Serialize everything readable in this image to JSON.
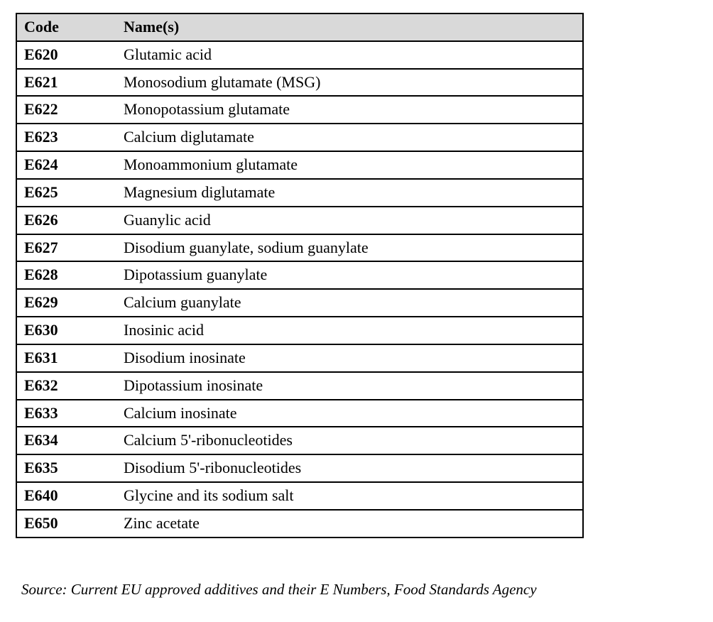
{
  "table": {
    "headers": [
      "Code",
      "Name(s)"
    ],
    "rows": [
      {
        "code": "E620",
        "name": "Glutamic acid"
      },
      {
        "code": "E621",
        "name": "Monosodium glutamate (MSG)"
      },
      {
        "code": "E622",
        "name": "Monopotassium glutamate"
      },
      {
        "code": "E623",
        "name": "Calcium diglutamate"
      },
      {
        "code": "E624",
        "name": "Monoammonium glutamate"
      },
      {
        "code": "E625",
        "name": "Magnesium diglutamate"
      },
      {
        "code": "E626",
        "name": "Guanylic acid"
      },
      {
        "code": "E627",
        "name": "Disodium guanylate, sodium guanylate"
      },
      {
        "code": "E628",
        "name": "Dipotassium guanylate"
      },
      {
        "code": "E629",
        "name": "Calcium guanylate"
      },
      {
        "code": "E630",
        "name": "Inosinic acid"
      },
      {
        "code": "E631",
        "name": "Disodium inosinate"
      },
      {
        "code": "E632",
        "name": "Dipotassium inosinate"
      },
      {
        "code": "E633",
        "name": "Calcium inosinate"
      },
      {
        "code": "E634",
        "name": "Calcium 5'-ribonucleotides"
      },
      {
        "code": "E635",
        "name": "Disodium 5'-ribonucleotides"
      },
      {
        "code": "E640",
        "name": "Glycine and its sodium salt"
      },
      {
        "code": "E650",
        "name": "Zinc acetate"
      }
    ]
  },
  "source": "Source: Current EU approved additives and their E Numbers, Food Standards Agency",
  "colors": {
    "header_bg": "#d9d9d9",
    "border": "#000000"
  }
}
